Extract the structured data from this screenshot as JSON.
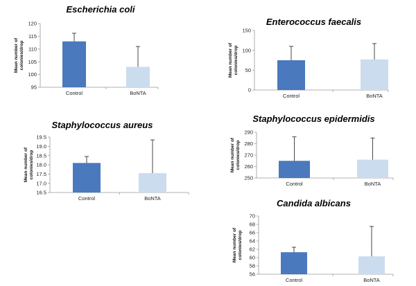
{
  "colors": {
    "control": "#4a79bd",
    "bonta": "#ccdcef",
    "axis": "#999999",
    "error": "#333333"
  },
  "chart_data": [
    {
      "type": "bar",
      "title": "Escherichia coli",
      "ylabel_lines": [
        "Mean number of",
        "colonies/drop"
      ],
      "categories": [
        "Control",
        "BoNTA"
      ],
      "values": [
        113,
        103
      ],
      "errors": [
        3.2,
        8
      ],
      "ylim": [
        95,
        120
      ],
      "yticks": [
        95,
        100,
        105,
        110,
        115,
        120
      ],
      "tick_decimals": 0
    },
    {
      "type": "bar",
      "title": "Enterococcus faecalis",
      "ylabel_lines": [
        "Mean number of",
        "colonies/drop"
      ],
      "categories": [
        "Control",
        "BoNTA"
      ],
      "values": [
        75,
        77
      ],
      "errors": [
        35,
        40
      ],
      "ylim": [
        0,
        150
      ],
      "yticks": [
        0,
        50,
        100,
        150
      ],
      "tick_decimals": 0
    },
    {
      "type": "bar",
      "title": "Staphylococcus aureus",
      "ylabel_lines": [
        "Mean number of",
        "colonies/drop"
      ],
      "categories": [
        "Control",
        "BoNTA"
      ],
      "values": [
        18.1,
        17.55
      ],
      "errors": [
        0.35,
        1.8
      ],
      "ylim": [
        16.5,
        19.5
      ],
      "yticks": [
        16.5,
        17,
        17.5,
        18,
        18.5,
        19,
        19.5
      ],
      "tick_decimals": 1
    },
    {
      "type": "bar",
      "title": "Staphylococcus epidermidis",
      "ylabel_lines": [
        "Mean number of",
        "colonies/drop"
      ],
      "categories": [
        "Control",
        "BoNTA"
      ],
      "values": [
        265,
        266
      ],
      "errors": [
        21,
        19
      ],
      "ylim": [
        250,
        290
      ],
      "yticks": [
        250,
        260,
        270,
        280,
        290
      ],
      "tick_decimals": 0
    },
    {
      "type": "bar",
      "title": "Candida albicans",
      "ylabel_lines": [
        "Mean number of",
        "colonies/drop"
      ],
      "categories": [
        "Control",
        "BoNTA"
      ],
      "values": [
        61.3,
        60.3
      ],
      "errors": [
        1.2,
        7.2
      ],
      "ylim": [
        56,
        70
      ],
      "yticks": [
        56,
        58,
        60,
        62,
        64,
        66,
        68,
        70
      ],
      "tick_decimals": 0
    }
  ]
}
